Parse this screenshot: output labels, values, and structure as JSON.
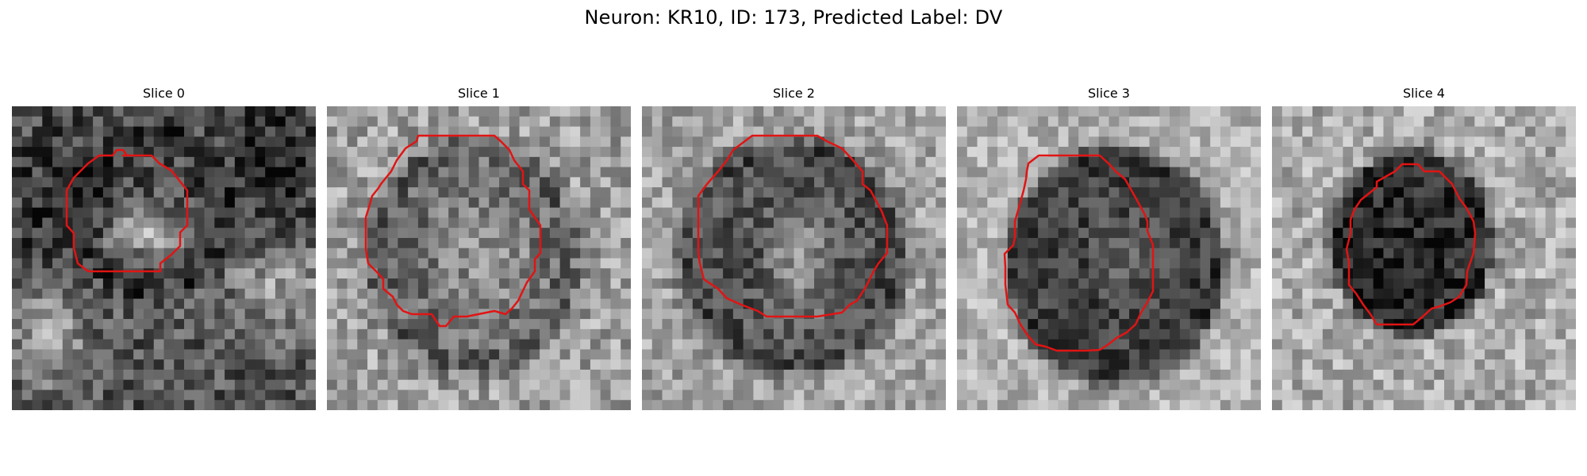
{
  "figure": {
    "title": "Neuron: KR10, ID: 173, Predicted Label: DV",
    "outline_color": "#e11414",
    "panels": [
      {
        "label": "Slice 0"
      },
      {
        "label": "Slice 1"
      },
      {
        "label": "Slice 2"
      },
      {
        "label": "Slice 3"
      },
      {
        "label": "Slice 4"
      }
    ]
  }
}
